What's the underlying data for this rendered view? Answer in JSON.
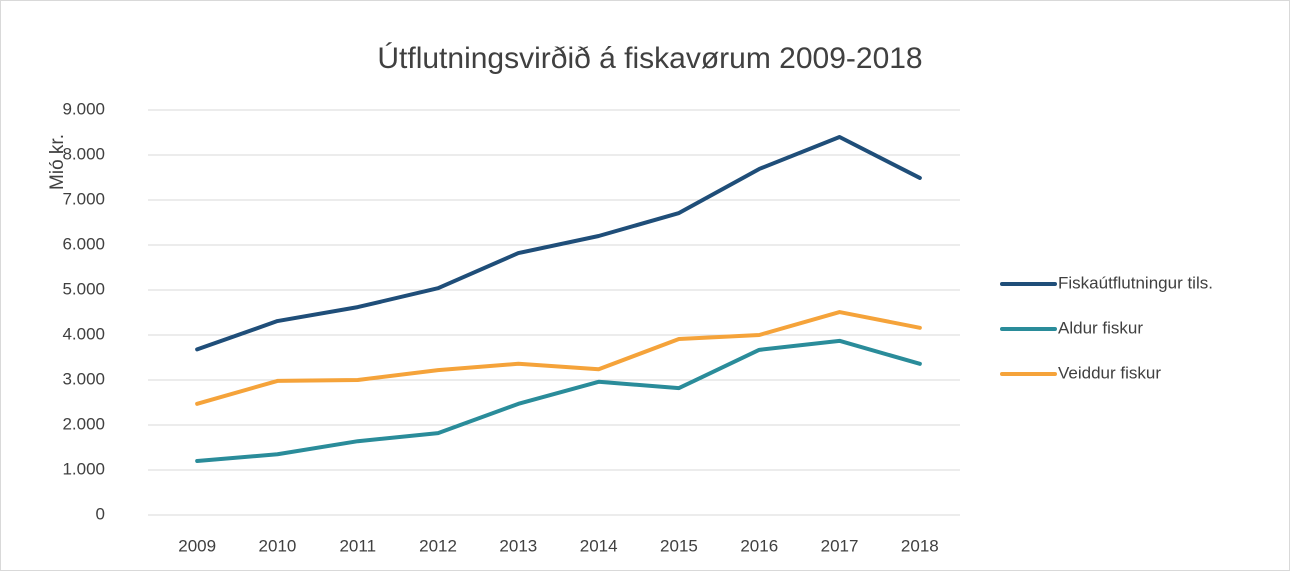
{
  "chart_data": {
    "type": "line",
    "title": "Útflutningsvirðið á fiskavørum 2009-2018",
    "y_label": "Mió kr.",
    "categories": [
      "2009",
      "2010",
      "2011",
      "2012",
      "2013",
      "2014",
      "2015",
      "2016",
      "2017",
      "2018"
    ],
    "series": [
      {
        "name": "Fiskaútflutningur tils.",
        "color": "#1f4e79",
        "values": [
          3680,
          4310,
          4620,
          5040,
          5820,
          6200,
          6710,
          7690,
          8400,
          7490
        ]
      },
      {
        "name": "Aldur fiskur",
        "color": "#2a8c9a",
        "values": [
          1200,
          1350,
          1640,
          1820,
          2470,
          2960,
          2820,
          3670,
          3870,
          3360
        ]
      },
      {
        "name": "Veiddur fiskur",
        "color": "#f5a33a",
        "values": [
          2470,
          2980,
          3000,
          3220,
          3360,
          3240,
          3910,
          4000,
          4510,
          4160
        ]
      }
    ],
    "ylim": [
      0,
      9000
    ],
    "yticks": [
      0,
      {
        "value": 1000,
        "label": "1.000"
      },
      {
        "value": 2000,
        "label": "2.000"
      },
      {
        "value": 3000,
        "label": "3.000"
      },
      {
        "value": 4000,
        "label": "4.000"
      },
      {
        "value": 5000,
        "label": "5.000"
      },
      {
        "value": 6000,
        "label": "6.000"
      },
      {
        "value": 7000,
        "label": "7.000"
      },
      {
        "value": 8000,
        "label": "8.000"
      },
      {
        "value": 9000,
        "label": "9.000"
      }
    ],
    "grid": true,
    "legend": "right"
  }
}
